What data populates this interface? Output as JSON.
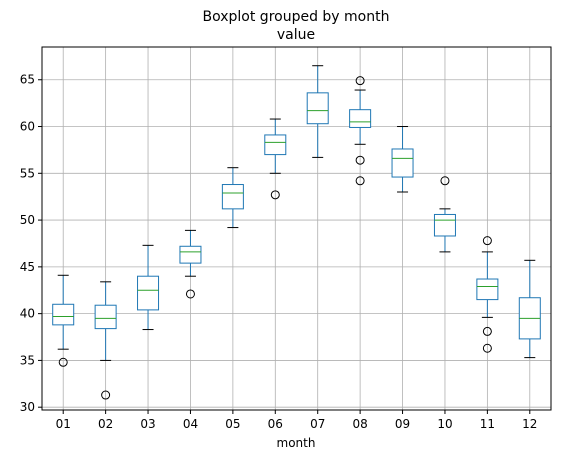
{
  "chart_data": {
    "type": "boxplot",
    "title": "Boxplot grouped by month",
    "subtitle": "value",
    "xlabel": "month",
    "ylabel": "",
    "ylim": [
      29.7,
      68.5
    ],
    "yticks": [
      30,
      35,
      40,
      45,
      50,
      55,
      60,
      65
    ],
    "grid": true,
    "colors": {
      "box": "#1f77b4",
      "median": "#2ca02c",
      "whisker_cap": "#000000",
      "flier": "#000000",
      "grid": "#b0b0b0"
    },
    "categories": [
      "01",
      "02",
      "03",
      "04",
      "05",
      "06",
      "07",
      "08",
      "09",
      "10",
      "11",
      "12"
    ],
    "boxes": [
      {
        "label": "01",
        "whislo": 36.2,
        "q1": 38.8,
        "med": 39.7,
        "q3": 41.0,
        "whishi": 44.1,
        "fliers": [
          34.8
        ]
      },
      {
        "label": "02",
        "whislo": 35.0,
        "q1": 38.4,
        "med": 39.5,
        "q3": 40.9,
        "whishi": 43.4,
        "fliers": [
          31.3
        ]
      },
      {
        "label": "03",
        "whislo": 38.3,
        "q1": 40.4,
        "med": 42.5,
        "q3": 44.0,
        "whishi": 47.3,
        "fliers": []
      },
      {
        "label": "04",
        "whislo": 44.0,
        "q1": 45.4,
        "med": 46.6,
        "q3": 47.2,
        "whishi": 48.9,
        "fliers": [
          42.1
        ]
      },
      {
        "label": "05",
        "whislo": 49.2,
        "q1": 51.2,
        "med": 52.9,
        "q3": 53.8,
        "whishi": 55.6,
        "fliers": []
      },
      {
        "label": "06",
        "whislo": 55.0,
        "q1": 57.0,
        "med": 58.3,
        "q3": 59.1,
        "whishi": 60.8,
        "fliers": [
          52.7
        ]
      },
      {
        "label": "07",
        "whislo": 56.7,
        "q1": 60.3,
        "med": 61.7,
        "q3": 63.6,
        "whishi": 66.5,
        "fliers": []
      },
      {
        "label": "08",
        "whislo": 58.1,
        "q1": 59.9,
        "med": 60.5,
        "q3": 61.8,
        "whishi": 63.9,
        "fliers": [
          54.2,
          56.4,
          64.9
        ]
      },
      {
        "label": "09",
        "whislo": 53.0,
        "q1": 54.6,
        "med": 56.6,
        "q3": 57.6,
        "whishi": 60.0,
        "fliers": []
      },
      {
        "label": "10",
        "whislo": 46.6,
        "q1": 48.3,
        "med": 50.0,
        "q3": 50.6,
        "whishi": 51.2,
        "fliers": [
          54.2
        ]
      },
      {
        "label": "11",
        "whislo": 39.6,
        "q1": 41.5,
        "med": 42.9,
        "q3": 43.7,
        "whishi": 46.6,
        "fliers": [
          36.3,
          38.1,
          47.8
        ]
      },
      {
        "label": "12",
        "whislo": 35.3,
        "q1": 37.3,
        "med": 39.5,
        "q3": 41.7,
        "whishi": 45.7,
        "fliers": []
      }
    ]
  }
}
